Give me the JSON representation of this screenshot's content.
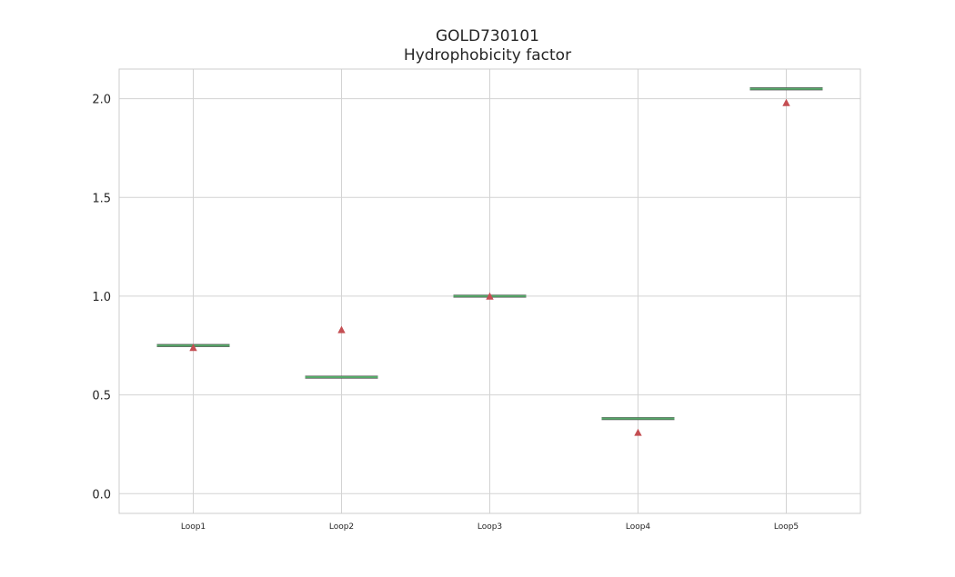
{
  "chart_data": {
    "type": "box",
    "title": "GOLD730101",
    "subtitle": "Hydrophobicity factor",
    "xlabel": "",
    "ylabel": "",
    "categories": [
      "Loop1",
      "Loop2",
      "Loop3",
      "Loop4",
      "Loop5"
    ],
    "medians": [
      0.75,
      0.59,
      1.0,
      0.38,
      2.05
    ],
    "means": [
      0.74,
      0.83,
      1.0,
      0.31,
      1.98
    ],
    "ylim": [
      -0.1,
      2.15
    ],
    "yticks": [
      "0.0",
      "0.5",
      "1.0",
      "1.5",
      "2.0"
    ],
    "ytick_values": [
      0.0,
      0.5,
      1.0,
      1.5,
      2.0
    ],
    "grid": true,
    "colors": {
      "median": "#55a868",
      "mean_marker": "#c44e52",
      "grid": "#d3d3d3",
      "axes": "#cccccc"
    }
  }
}
